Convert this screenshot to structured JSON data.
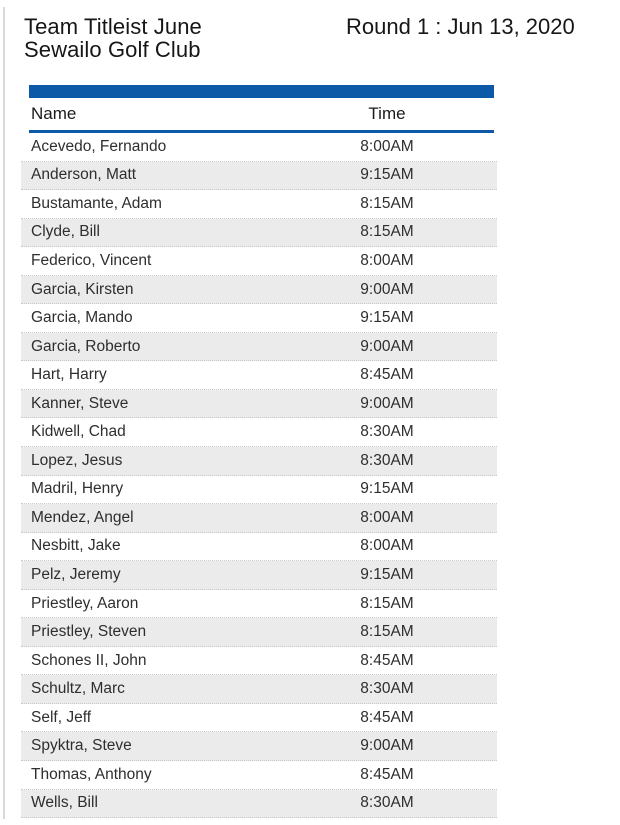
{
  "page": {
    "title_line1": "Team Titleist June",
    "title_line2": "Sewailo Golf Club",
    "round_label": "Round 1 : Jun 13, 2020"
  },
  "table": {
    "headers": {
      "name": "Name",
      "time": "Time"
    },
    "rows": [
      {
        "name": "Acevedo, Fernando",
        "time": "8:00AM"
      },
      {
        "name": "Anderson, Matt",
        "time": "9:15AM"
      },
      {
        "name": "Bustamante, Adam",
        "time": "8:15AM"
      },
      {
        "name": "Clyde, Bill",
        "time": "8:15AM"
      },
      {
        "name": "Federico, Vincent",
        "time": "8:00AM"
      },
      {
        "name": "Garcia, Kirsten",
        "time": "9:00AM"
      },
      {
        "name": "Garcia, Mando",
        "time": "9:15AM"
      },
      {
        "name": "Garcia, Roberto",
        "time": "9:00AM"
      },
      {
        "name": "Hart, Harry",
        "time": "8:45AM"
      },
      {
        "name": "Kanner, Steve",
        "time": "9:00AM"
      },
      {
        "name": "Kidwell, Chad",
        "time": "8:30AM"
      },
      {
        "name": "Lopez, Jesus",
        "time": "8:30AM"
      },
      {
        "name": "Madril, Henry",
        "time": "9:15AM"
      },
      {
        "name": "Mendez, Angel",
        "time": "8:00AM"
      },
      {
        "name": "Nesbitt, Jake",
        "time": "8:00AM"
      },
      {
        "name": "Pelz, Jeremy",
        "time": "9:15AM"
      },
      {
        "name": "Priestley, Aaron",
        "time": "8:15AM"
      },
      {
        "name": "Priestley, Steven",
        "time": "8:15AM"
      },
      {
        "name": "Schones II, John",
        "time": "8:45AM"
      },
      {
        "name": "Schultz, Marc",
        "time": "8:30AM"
      },
      {
        "name": "Self, Jeff",
        "time": "8:45AM"
      },
      {
        "name": "Spyktra, Steve",
        "time": "9:00AM"
      },
      {
        "name": "Thomas, Anthony",
        "time": "8:45AM"
      },
      {
        "name": "Wells, Bill",
        "time": "8:30AM"
      }
    ]
  },
  "colors": {
    "header_band_blue": "#0e58a8",
    "alt_row_gray": "#ebebeb",
    "row_divider": "#c9c9c9"
  }
}
